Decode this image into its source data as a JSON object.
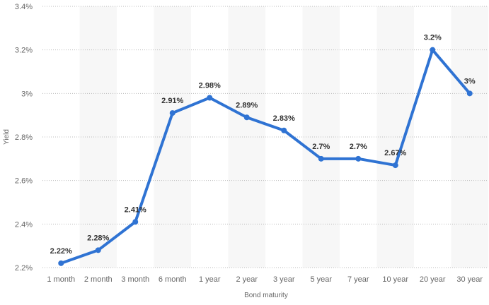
{
  "chart_data": {
    "type": "line",
    "xlabel": "Bond maturity",
    "ylabel": "Yield",
    "categories": [
      "1 month",
      "2 month",
      "3 month",
      "6 month",
      "1 year",
      "2 year",
      "3 year",
      "5 year",
      "7 year",
      "10 year",
      "20 year",
      "30 year"
    ],
    "series": [
      {
        "values": [
          2.22,
          2.28,
          2.41,
          2.91,
          2.98,
          2.89,
          2.83,
          2.7,
          2.7,
          2.67,
          3.2,
          3.0
        ],
        "labels": [
          "2.22%",
          "2.28%",
          "2.41%",
          "2.91%",
          "2.98%",
          "2.89%",
          "2.83%",
          "2.7%",
          "2.7%",
          "2.67%",
          "3.2%",
          "3%"
        ]
      }
    ],
    "ylim": [
      2.2,
      3.4
    ],
    "yticks": [
      2.2,
      2.4,
      2.6,
      2.8,
      3.0,
      3.2,
      3.4
    ],
    "ytick_labels": [
      "2.2%",
      "2.4%",
      "2.6%",
      "2.8%",
      "3%",
      "3.2%",
      "3.4%"
    ],
    "grid": true,
    "colors": {
      "line": "#2f73d3",
      "band": "#f7f7f7",
      "grid": "#bbbbbb"
    }
  }
}
